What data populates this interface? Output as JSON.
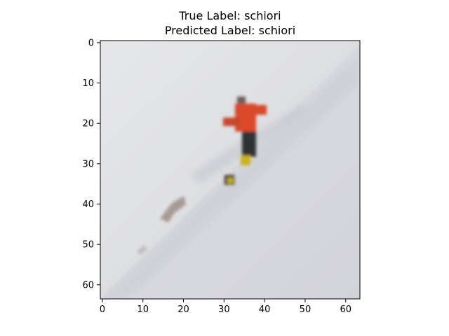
{
  "title": {
    "true_label": "True Label: schiori",
    "predicted_label": "Predicted Label: schiori"
  },
  "image": {
    "description_colors": {
      "sky": "#e4e5e7",
      "snow": "#dcdde2",
      "jacket": "#d9482a",
      "pants": "#2f3036",
      "accent": "#c9b21e"
    }
  },
  "axes": {
    "xlim": [
      -0.5,
      63.5
    ],
    "ylim": [
      63.5,
      -0.5
    ],
    "x_ticks": [
      {
        "value": 0,
        "label": "0"
      },
      {
        "value": 10,
        "label": "10"
      },
      {
        "value": 20,
        "label": "20"
      },
      {
        "value": 30,
        "label": "30"
      },
      {
        "value": 40,
        "label": "40"
      },
      {
        "value": 50,
        "label": "50"
      },
      {
        "value": 60,
        "label": "60"
      }
    ],
    "y_ticks": [
      {
        "value": 0,
        "label": "0"
      },
      {
        "value": 10,
        "label": "10"
      },
      {
        "value": 20,
        "label": "20"
      },
      {
        "value": 30,
        "label": "30"
      },
      {
        "value": 40,
        "label": "40"
      },
      {
        "value": 50,
        "label": "50"
      },
      {
        "value": 60,
        "label": "60"
      }
    ]
  }
}
